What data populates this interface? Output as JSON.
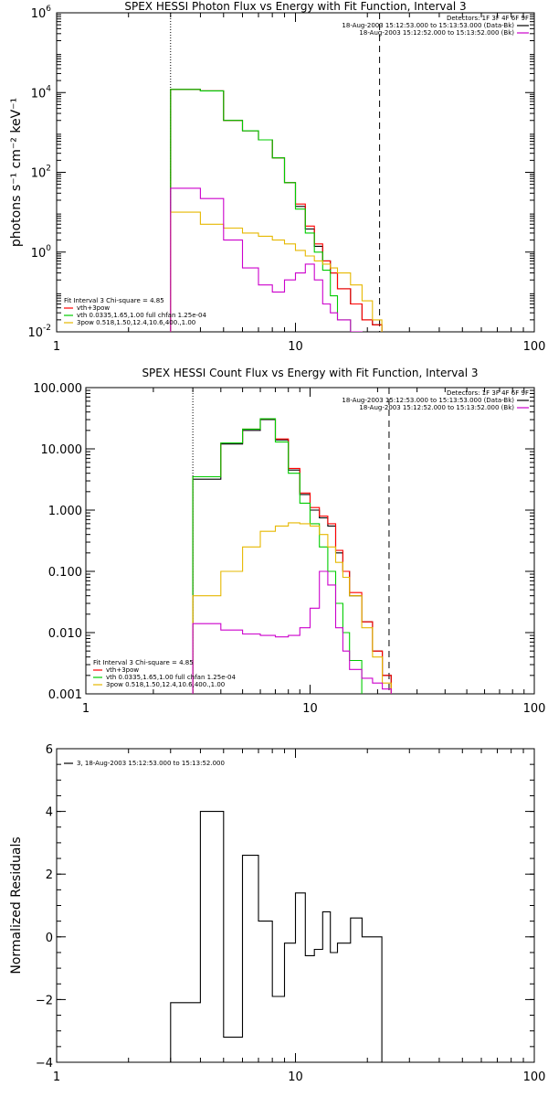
{
  "chart_data": [
    {
      "type": "line",
      "title": "SPEX HESSI Photon Flux vs Energy with Fit Function, Interval 3",
      "ylabel": "photons s⁻¹ cm⁻² keV⁻¹",
      "xlim": [
        1,
        100
      ],
      "ylim": [
        0.01,
        1000000
      ],
      "xscale": "log",
      "yscale": "log",
      "xticks": [
        {
          "v": 1,
          "label": "1"
        },
        {
          "v": 10,
          "label": "10"
        },
        {
          "v": 100,
          "label": "100"
        }
      ],
      "yticks": [
        {
          "v": 0.01,
          "base": "10",
          "exp": "-2"
        },
        {
          "v": 1,
          "base": "10",
          "exp": "0"
        },
        {
          "v": 100,
          "base": "10",
          "exp": "2"
        },
        {
          "v": 10000,
          "base": "10",
          "exp": "4"
        },
        {
          "v": 1000000,
          "base": "10",
          "exp": "6"
        }
      ],
      "vlines": [
        {
          "x": 3.0,
          "style": "dotted"
        },
        {
          "x": 22.5,
          "style": "dashed"
        }
      ],
      "legend_top": {
        "header": "Detectors: 1F 3F 4F 6F 9F",
        "entries": [
          {
            "text": "18-Aug-2003 15:12:53.000 to 15:13:53.000 (Data-Bk)",
            "color": "#000000"
          },
          {
            "text": "18-Aug-2003 15:12:52.000 to 15:13:52.000 (Bk)",
            "color": "#cc00cc"
          }
        ]
      },
      "legend_bottom": {
        "header": "Fit Interval 3   Chi-square = 4.85",
        "entries": [
          {
            "text": "vth+3pow",
            "color": "#ff0000"
          },
          {
            "text": "vth 0.0335,1.65,1.00  full chfan 1.25e-04",
            "color": "#00cc00"
          },
          {
            "text": "3pow 0.518,1.50,12.4,10.6,400.,1.00",
            "color": "#e6b800"
          }
        ]
      },
      "bin_edges": [
        3.0,
        4.0,
        5.0,
        6.0,
        7.0,
        8.0,
        9.0,
        10.0,
        11.0,
        12.0,
        13.0,
        14.0,
        15.0,
        17.0,
        19.0,
        21.0,
        23.0
      ],
      "series": [
        {
          "color": "#000000",
          "values": [
            12000,
            11000,
            2000,
            1100,
            650,
            230,
            55,
            14,
            3.8,
            1.4,
            0.6,
            0.3,
            0.12,
            0.05,
            0.02,
            0.015
          ]
        },
        {
          "color": "#ff0000",
          "values": [
            12000,
            11000,
            2000,
            1100,
            650,
            230,
            55,
            16,
            4.5,
            1.6,
            0.6,
            0.3,
            0.12,
            0.05,
            0.02,
            0.015
          ]
        },
        {
          "color": "#00cc00",
          "values": [
            12000,
            11000,
            2000,
            1100,
            650,
            230,
            55,
            12,
            3.0,
            1.0,
            0.35,
            0.08,
            0.02,
            0.01,
            0.006,
            0.005
          ]
        },
        {
          "color": "#e6b800",
          "values": [
            10,
            5,
            4,
            3,
            2.5,
            2,
            1.6,
            1.1,
            0.8,
            0.6,
            0.5,
            0.4,
            0.3,
            0.15,
            0.06,
            0.02
          ]
        },
        {
          "color": "#cc00cc",
          "values": [
            40,
            22,
            2,
            0.4,
            0.15,
            0.1,
            0.2,
            0.3,
            0.5,
            0.2,
            0.05,
            0.03,
            0.02,
            0.01,
            0.008,
            0.006
          ]
        }
      ]
    },
    {
      "type": "line",
      "title": "SPEX HESSI Count Flux vs Energy with Fit Function, Interval 3",
      "ylabel": "",
      "xlim": [
        1,
        100
      ],
      "ylim": [
        0.001,
        100
      ],
      "xscale": "log",
      "yscale": "log",
      "xticks": [
        {
          "v": 1,
          "label": "1"
        },
        {
          "v": 10,
          "label": "10"
        },
        {
          "v": 100,
          "label": "100"
        }
      ],
      "yticks": [
        {
          "v": 0.001,
          "label": "0.001"
        },
        {
          "v": 0.01,
          "label": "0.010"
        },
        {
          "v": 0.1,
          "label": "0.100"
        },
        {
          "v": 1,
          "label": "1.000"
        },
        {
          "v": 10,
          "label": "10.000"
        },
        {
          "v": 100,
          "label": "100.000"
        }
      ],
      "vlines": [
        {
          "x": 3.0,
          "style": "dotted"
        },
        {
          "x": 22.5,
          "style": "dashed"
        }
      ],
      "legend_top": {
        "header": "Detectors: 1F 3F 4F 6F 9F",
        "entries": [
          {
            "text": "18-Aug-2003 15:12:53.000 to 15:13:53.000 (Data-Bk)",
            "color": "#000000"
          },
          {
            "text": "18-Aug-2003 15:12:52.000 to 15:13:52.000 (Bk)",
            "color": "#cc00cc"
          }
        ]
      },
      "legend_bottom": {
        "header": "Fit Interval 3   Chi-square = 4.85",
        "entries": [
          {
            "text": "vth+3pow",
            "color": "#ff0000"
          },
          {
            "text": "vth 0.0335,1.65,1.00  full chfan 1.25e-04",
            "color": "#00cc00"
          },
          {
            "text": "3pow 0.518,1.50,12.4,10.6,400.,1.00",
            "color": "#e6b800"
          }
        ]
      },
      "bin_edges": [
        3.0,
        4.0,
        5.0,
        6.0,
        7.0,
        8.0,
        9.0,
        10.0,
        11.0,
        12.0,
        13.0,
        14.0,
        15.0,
        17.0,
        19.0,
        21.0,
        23.0
      ],
      "series": [
        {
          "color": "#000000",
          "values": [
            3.2,
            12,
            20,
            30,
            14,
            4.5,
            1.8,
            1.0,
            0.75,
            0.55,
            0.2,
            0.1,
            0.04,
            0.015,
            0.005,
            0.002
          ]
        },
        {
          "color": "#ff0000",
          "values": [
            3.5,
            12.5,
            21,
            31,
            14.5,
            4.8,
            1.9,
            1.1,
            0.8,
            0.6,
            0.22,
            0.1,
            0.045,
            0.015,
            0.005,
            0.002
          ]
        },
        {
          "color": "#00cc00",
          "values": [
            3.5,
            12.5,
            21,
            31,
            13,
            4,
            1.3,
            0.6,
            0.25,
            0.1,
            0.03,
            0.01,
            0.0035,
            0.0009,
            0.0009,
            0.0009
          ]
        },
        {
          "color": "#e6b800",
          "values": [
            0.04,
            0.1,
            0.25,
            0.45,
            0.55,
            0.62,
            0.6,
            0.55,
            0.4,
            0.25,
            0.14,
            0.08,
            0.04,
            0.012,
            0.004,
            0.0015
          ]
        },
        {
          "color": "#cc00cc",
          "values": [
            0.014,
            0.011,
            0.0095,
            0.009,
            0.0085,
            0.009,
            0.012,
            0.025,
            0.1,
            0.06,
            0.012,
            0.005,
            0.0025,
            0.0018,
            0.0015,
            0.0012
          ]
        }
      ]
    },
    {
      "type": "line",
      "title": "",
      "ylabel": "Normalized Residuals",
      "xlim": [
        1,
        100
      ],
      "ylim": [
        -4,
        6
      ],
      "xscale": "log",
      "yscale": "linear",
      "xticks": [
        {
          "v": 1,
          "label": "1"
        },
        {
          "v": 10,
          "label": "10"
        },
        {
          "v": 100,
          "label": "100"
        }
      ],
      "yticks": [
        {
          "v": -4,
          "label": "−4"
        },
        {
          "v": -2,
          "label": "−2"
        },
        {
          "v": 0,
          "label": "0"
        },
        {
          "v": 2,
          "label": "2"
        },
        {
          "v": 4,
          "label": "4"
        },
        {
          "v": 6,
          "label": "6"
        }
      ],
      "legend_top": {
        "header": "",
        "entries": [
          {
            "text": "3, 18-Aug-2003 15:12:53.000 to 15:13:52.000",
            "color": "#000000"
          }
        ]
      },
      "bin_edges": [
        3.0,
        4.0,
        5.0,
        6.0,
        7.0,
        8.0,
        9.0,
        10.0,
        11.0,
        12.0,
        13.0,
        14.0,
        15.0,
        17.0,
        19.0,
        21.0,
        23.0
      ],
      "series": [
        {
          "color": "#000000",
          "values": [
            -2.1,
            4.0,
            -3.2,
            2.6,
            0.5,
            -1.9,
            -0.2,
            1.4,
            -0.6,
            -0.4,
            0.8,
            -0.5,
            -0.2,
            0.6,
            0.0,
            0.0
          ]
        }
      ]
    }
  ]
}
